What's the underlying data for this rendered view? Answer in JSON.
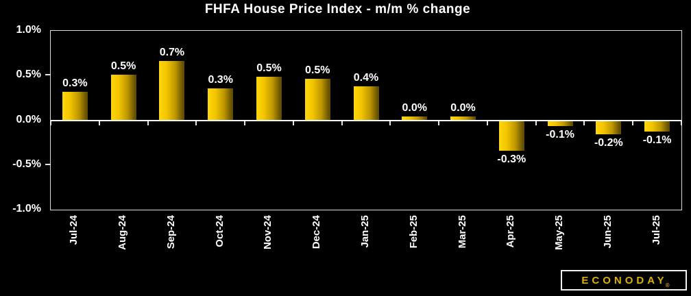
{
  "chart_data": {
    "type": "bar",
    "title": "FHFA House Price Index - m/m % change",
    "categories": [
      "Jul-24",
      "Aug-24",
      "Sep-24",
      "Oct-24",
      "Nov-24",
      "Dec-24",
      "Jan-25",
      "Feb-25",
      "Mar-25",
      "Apr-25",
      "May-25",
      "Jun-25",
      "Jul-25"
    ],
    "values": [
      0.3,
      0.5,
      0.7,
      0.3,
      0.5,
      0.5,
      0.4,
      0.0,
      0.0,
      -0.3,
      -0.1,
      -0.2,
      -0.1
    ],
    "labels": [
      "0.3%",
      "0.5%",
      "0.7%",
      "0.3%",
      "0.5%",
      "0.5%",
      "0.4%",
      "0.0%",
      "0.0%",
      "-0.3%",
      "-0.1%",
      "-0.2%",
      "-0.1%"
    ],
    "bar_heights_pct": [
      0.32,
      0.51,
      0.66,
      0.36,
      0.49,
      0.46,
      0.38,
      0.04,
      0.04,
      -0.33,
      -0.06,
      -0.15,
      -0.12
    ],
    "xlabel": "",
    "ylabel": "",
    "ylim": [
      -1.0,
      1.0
    ],
    "ytick_labels": [
      "1.0%",
      "0.5%",
      "0.0%",
      "-0.5%",
      "-1.0%"
    ],
    "grid": false,
    "legend": "none"
  },
  "branding": {
    "logo_text": "ECONODAY",
    "registered_mark": "®"
  },
  "colors": {
    "background": "#000000",
    "text": "#ffffff",
    "axis_border": "#dcdcdc",
    "zero_line": "#ffffff",
    "bar_gradient_left": "#ffd60a",
    "bar_gradient_right": "#5e4b00",
    "logo_gold": "#ddb20f"
  }
}
